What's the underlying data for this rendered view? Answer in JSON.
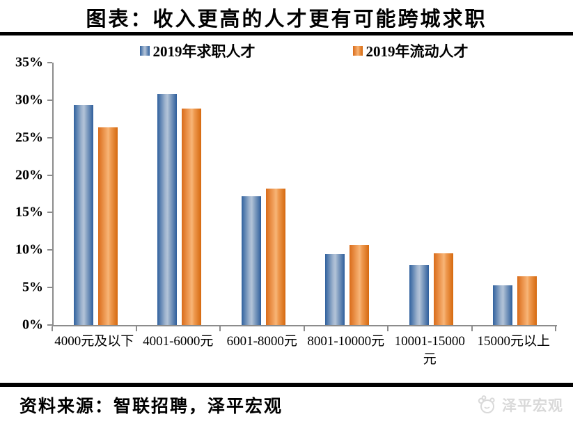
{
  "title": "图表：收入更高的人才更有可能跨城求职",
  "chart_data": {
    "type": "bar",
    "title": "图表：收入更高的人才更有可能跨城求职",
    "categories": [
      "4000元及以下",
      "4001-6000元",
      "6001-8000元",
      "8001-10000元",
      "10001-15000元",
      "15000元以上"
    ],
    "series": [
      {
        "name": "2019年求职人才",
        "values": [
          29.3,
          30.8,
          17.2,
          9.5,
          8.0,
          5.3
        ],
        "color": "#3F6FA8",
        "gradient": [
          "#30619E",
          "#9FB4CE",
          "#B3C3D8",
          "#8FA8C6",
          "#2E5E9C"
        ]
      },
      {
        "name": "2019年流动人才",
        "values": [
          26.4,
          28.9,
          18.2,
          10.7,
          9.6,
          6.5
        ],
        "color": "#E8842F",
        "gradient": [
          "#D96C1A",
          "#F2A360",
          "#F7B678",
          "#EF9A50",
          "#D5690F"
        ]
      }
    ],
    "xlabel": "",
    "ylabel": "",
    "ylim": [
      0,
      35
    ],
    "ytick_step": 5,
    "ytick_suffix": "%",
    "grid": false,
    "legend_position": "top"
  },
  "footer": {
    "source": "资料来源：智联招聘，泽平宏观",
    "watermark": "泽平宏观"
  },
  "colors": {
    "axis": "#8c8c8c",
    "rule": "#000000",
    "watermark": "#d9d9d9",
    "text": "#000000"
  }
}
